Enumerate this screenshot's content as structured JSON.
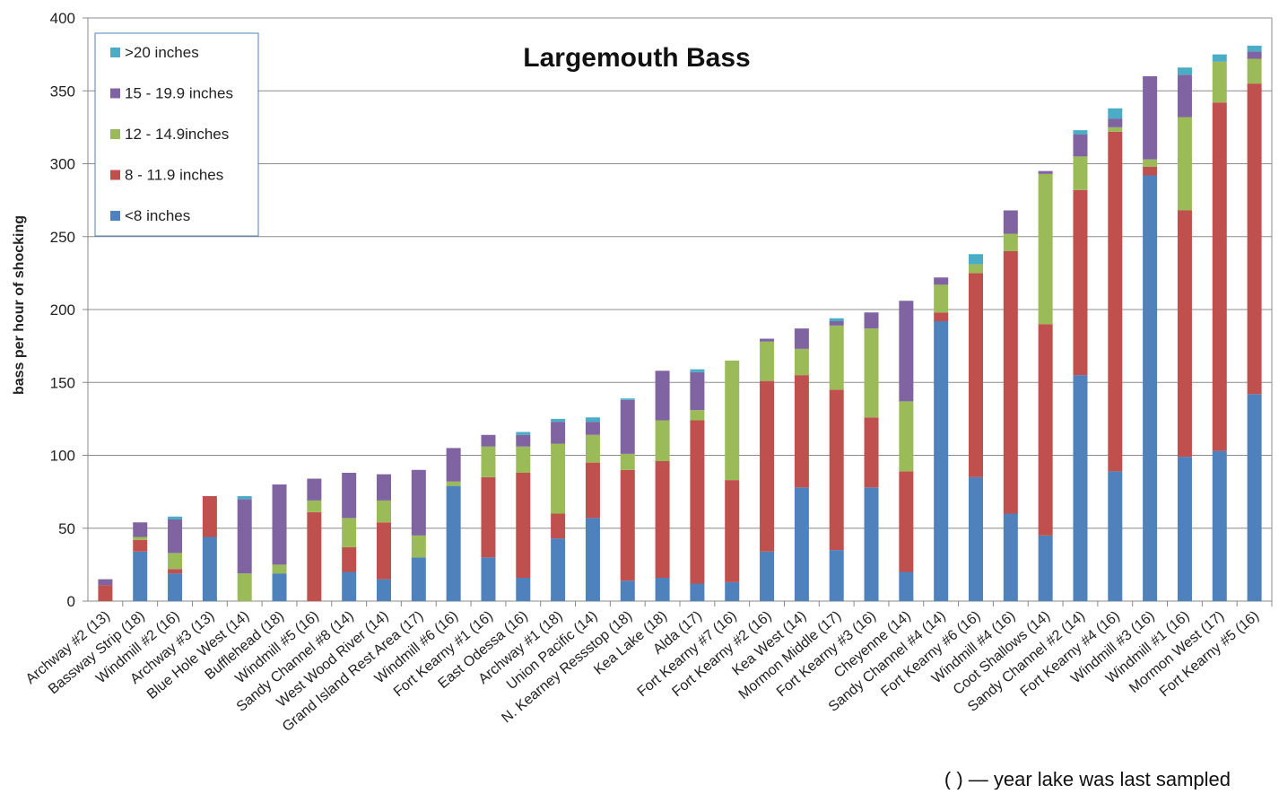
{
  "chart_data": {
    "type": "bar",
    "stacked": true,
    "title": "Largemouth Bass",
    "ylabel": "bass per hour of shocking",
    "xlabel": "",
    "ylim": [
      0,
      400
    ],
    "yticks": [
      0,
      50,
      100,
      150,
      200,
      250,
      300,
      350,
      400
    ],
    "grid": true,
    "legend_position": "top-left",
    "footnote": "( ) — year lake was last sampled",
    "categories": [
      "Archway #2 (13)",
      "Bassway Strip (18)",
      "Windmill #2 (16)",
      "Archway #3 (13)",
      "Blue Hole West (14)",
      "Bufflehead (18)",
      "Windmill #5 (16)",
      "Sandy Channel #8 (14)",
      "West Wood River (14)",
      "Grand Island Rest Area (17)",
      "Windmill #6 (16)",
      "Fort Kearny #1 (16)",
      "East Odessa (16)",
      "Archway #1  (18)",
      "Union Pacific (14)",
      "N. Kearney Ressstop (18)",
      "Kea Lake (18)",
      "Alda (17)",
      "Fort Kearny #7 (16)",
      "Fort Kearny #2 (16)",
      "Kea West (14)",
      "Mormon Middle (17)",
      "Fort Kearny #3 (16)",
      "Cheyenne (14)",
      "Sandy Channel #4 (14)",
      "Fort Kearny #6 (16)",
      "Windmill #4 (16)",
      "Coot Shallows (14)",
      "Sandy Channel #2 (14)",
      "Fort Kearny #4 (16)",
      "Windmill #3 (16)",
      "Windmill #1 (16)",
      "Mormon West (17)",
      "Fort Kearny #5 (16)"
    ],
    "series": [
      {
        "name": "<8 inches",
        "color": "#4f81bd",
        "values": [
          0,
          34,
          19,
          44,
          0,
          19,
          0,
          20,
          15,
          30,
          79,
          30,
          16,
          43,
          57,
          14,
          16,
          12,
          13,
          34,
          78,
          35,
          78,
          20,
          192,
          85,
          60,
          45,
          155,
          89,
          292,
          99,
          103,
          142
        ]
      },
      {
        "name": "8 - 11.9 inches",
        "color": "#c0504d",
        "values": [
          11,
          8,
          3,
          28,
          0,
          0,
          61,
          17,
          39,
          0,
          0,
          55,
          72,
          17,
          38,
          76,
          80,
          112,
          70,
          117,
          77,
          110,
          48,
          69,
          6,
          140,
          180,
          145,
          127,
          233,
          6,
          169,
          239,
          213
        ]
      },
      {
        "name": "12 - 14.9inches",
        "color": "#9bbb59",
        "values": [
          0,
          2,
          11,
          0,
          19,
          6,
          8,
          20,
          15,
          15,
          3,
          21,
          18,
          48,
          19,
          11,
          28,
          7,
          82,
          27,
          18,
          44,
          61,
          48,
          19,
          6,
          12,
          103,
          23,
          3,
          5,
          64,
          28,
          17
        ]
      },
      {
        "name": "15 - 19.9 inches",
        "color": "#8064a2",
        "values": [
          4,
          10,
          23,
          0,
          51,
          55,
          15,
          31,
          18,
          45,
          23,
          8,
          8,
          15,
          9,
          37,
          34,
          26,
          0,
          2,
          14,
          3,
          11,
          69,
          5,
          0,
          16,
          2,
          15,
          6,
          57,
          29,
          0,
          5
        ]
      },
      {
        "name": ">20 inches",
        "color": "#4bacc6",
        "values": [
          0,
          0,
          2,
          0,
          2,
          0,
          0,
          0,
          0,
          0,
          0,
          0,
          2,
          2,
          3,
          1,
          0,
          2,
          0,
          0,
          0,
          2,
          0,
          0,
          0,
          7,
          0,
          0,
          3,
          7,
          0,
          5,
          5,
          4
        ]
      }
    ]
  }
}
